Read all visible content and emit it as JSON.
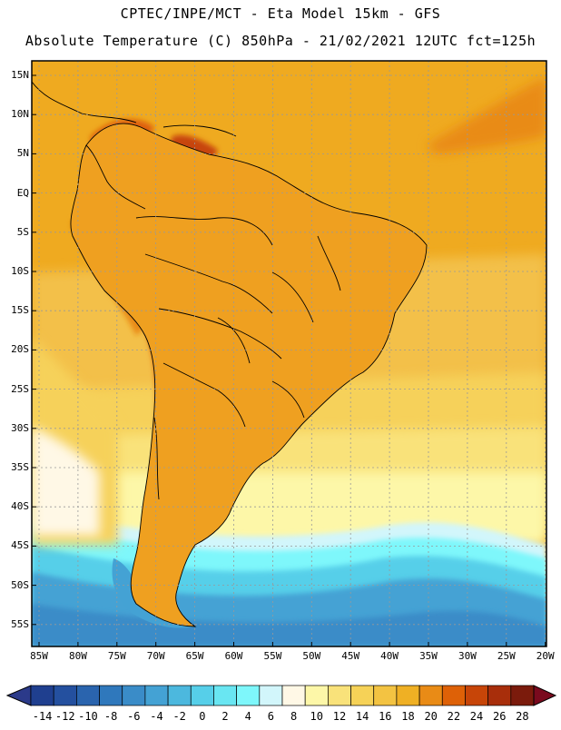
{
  "header": {
    "line1": "CPTEC/INPE/MCT -  Eta Model 15km - GFS",
    "line2": "Absolute Temperature (C) 850hPa - 21/02/2021 12UTC fct=125h"
  },
  "map": {
    "lat_ticks": [
      "15N",
      "10N",
      "5N",
      "EQ",
      "5S",
      "10S",
      "15S",
      "20S",
      "25S",
      "30S",
      "35S",
      "40S",
      "45S",
      "50S",
      "55S"
    ],
    "lon_ticks": [
      "85W",
      "80W",
      "75W",
      "70W",
      "65W",
      "60W",
      "55W",
      "50W",
      "45W",
      "40W",
      "35W",
      "30W",
      "25W",
      "20W"
    ]
  },
  "colorbar": {
    "labels": [
      "-14",
      "-12",
      "-10",
      "-8",
      "-6",
      "-4",
      "-2",
      "0",
      "2",
      "4",
      "6",
      "8",
      "10",
      "12",
      "14",
      "16",
      "18",
      "20",
      "22",
      "24",
      "26",
      "28"
    ],
    "colors": [
      "#1f3f8f",
      "#24509f",
      "#2a64ae",
      "#2f78bc",
      "#3a8cc8",
      "#44a2d4",
      "#4cb8de",
      "#56cfe9",
      "#69e6f2",
      "#7ef7fb",
      "#d2f6fb",
      "#fff8e6",
      "#fdf7a8",
      "#f9e27a",
      "#f6d257",
      "#f3c342",
      "#efb024",
      "#e98b16",
      "#de6107",
      "#c74508",
      "#a82e0b",
      "#7b1b0c"
    ],
    "under_color": "#2b3a8a",
    "over_color": "#7a0a1e"
  }
}
